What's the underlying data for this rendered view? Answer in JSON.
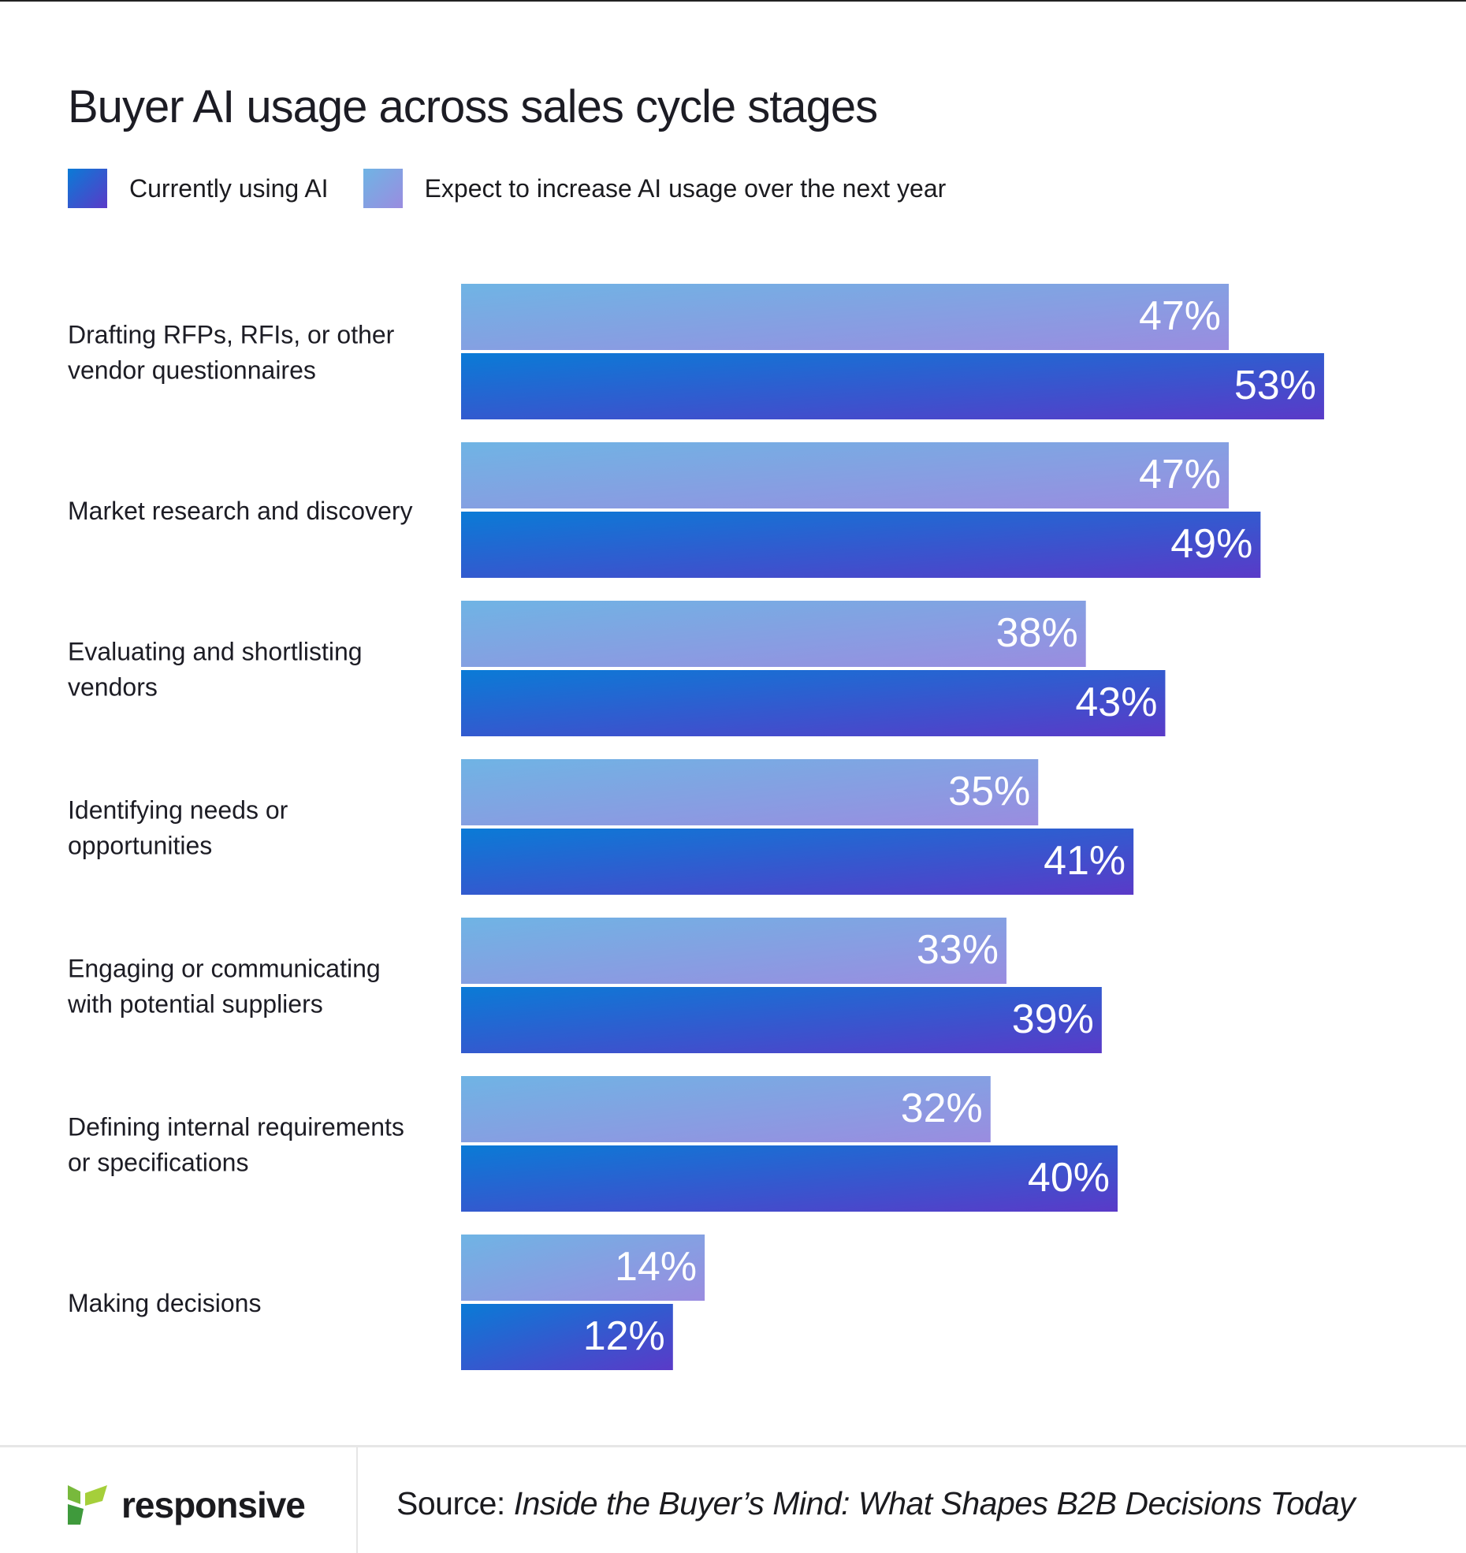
{
  "chart_data": {
    "type": "bar",
    "orientation": "horizontal",
    "title": "Buyer AI usage across sales cycle stages",
    "categories": [
      [
        "Drafting RFPs, RFIs, or other",
        "vendor questionnaires"
      ],
      [
        "Market research and discovery"
      ],
      [
        "Evaluating and shortlisting",
        "vendors"
      ],
      [
        "Identifying needs or",
        "opportunities"
      ],
      [
        "Engaging or communicating",
        "with potential suppliers"
      ],
      [
        "Defining internal requirements",
        "or specifications"
      ],
      [
        "Making decisions"
      ]
    ],
    "series": [
      {
        "name": "Expect to increase AI usage over the next year",
        "values": [
          47,
          47,
          38,
          35,
          33,
          32,
          14
        ],
        "colors": [
          "#6fb4e4",
          "#9a8ce0"
        ]
      },
      {
        "name": "Currently using AI",
        "values": [
          53,
          49,
          43,
          41,
          39,
          40,
          12
        ],
        "colors": [
          "#0a7bd6",
          "#5a3ac8"
        ]
      }
    ],
    "value_suffix": "%",
    "legend_position": "top-left",
    "grid": false
  },
  "legend": {
    "current": "Currently using AI",
    "expect": "Expect to increase AI usage over the next year"
  },
  "footer": {
    "logo_text": "responsive",
    "source_prefix": "Source: ",
    "source_title": "Inside the Buyer’s Mind: What Shapes B2B Decisions Today"
  }
}
